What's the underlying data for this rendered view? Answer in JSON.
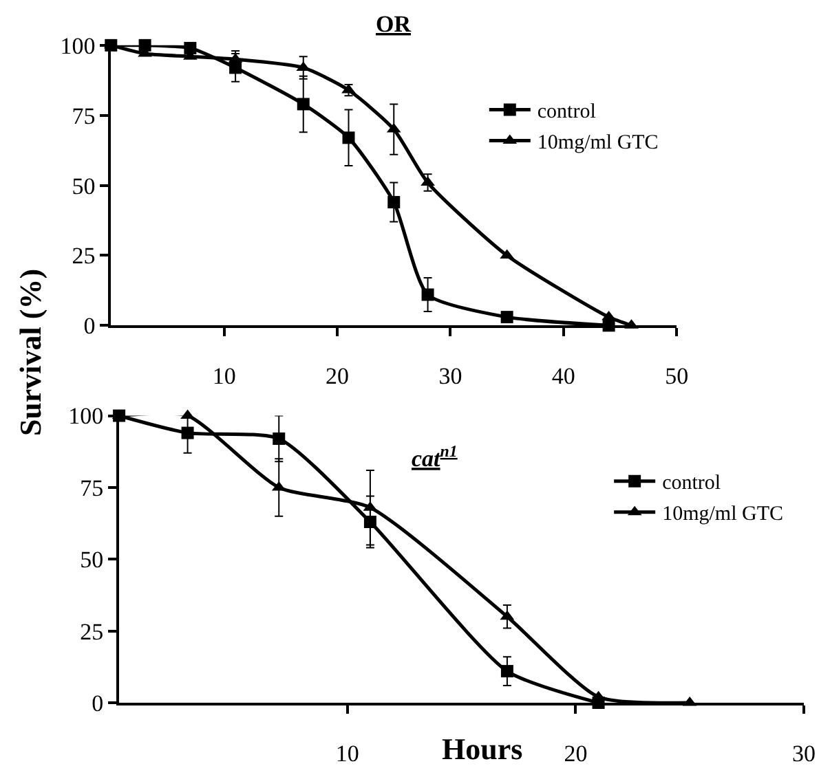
{
  "chart_data": [
    {
      "type": "line",
      "title": "OR",
      "ylabel": "Survival (%)",
      "xlim": [
        0,
        50
      ],
      "xticks": [
        10,
        20,
        30,
        40,
        50
      ],
      "ylim": [
        0,
        100
      ],
      "yticks": [
        0,
        25,
        50,
        75,
        100
      ],
      "legend": "top right",
      "line_style": "solid",
      "series": [
        {
          "name": "control",
          "color": "#000000",
          "marker": "square",
          "x": [
            0,
            3,
            7,
            11,
            17,
            21,
            25,
            28,
            35,
            44
          ],
          "values": [
            100,
            100,
            99,
            92,
            79,
            67,
            44,
            11,
            3,
            0
          ],
          "errors": [
            null,
            null,
            null,
            5,
            10,
            10,
            7,
            6,
            null,
            null
          ]
        },
        {
          "name": "10mg/ml GTC",
          "color": "#000000",
          "marker": "triangle",
          "x": [
            0,
            3,
            7,
            11,
            17,
            21,
            25,
            28,
            35,
            44,
            46
          ],
          "values": [
            100,
            97,
            96,
            95,
            92,
            84,
            70,
            51,
            25,
            3,
            0
          ],
          "errors": [
            null,
            null,
            null,
            3,
            4,
            2,
            9,
            3,
            null,
            null,
            null
          ]
        }
      ]
    },
    {
      "type": "line",
      "title": "cat$^{n1}$",
      "xlabel": "Hours",
      "xlim": [
        0,
        30
      ],
      "xticks": [
        10,
        20,
        30
      ],
      "ylim": [
        0,
        100
      ],
      "yticks": [
        0,
        25,
        50,
        75,
        100
      ],
      "legend": "top right",
      "line_style": "solid",
      "series": [
        {
          "name": "control",
          "color": "#000000",
          "marker": "square",
          "x": [
            0,
            3,
            7,
            11,
            17,
            21
          ],
          "values": [
            100,
            94,
            92,
            63,
            11,
            0
          ],
          "errors": [
            null,
            7,
            8,
            9,
            5,
            null
          ]
        },
        {
          "name": "10mg/ml GTC",
          "color": "#000000",
          "marker": "triangle",
          "x": [
            0,
            3,
            7,
            11,
            17,
            21,
            25
          ],
          "values": [
            100,
            100,
            75,
            68,
            30,
            2,
            0
          ],
          "errors": [
            null,
            null,
            10,
            13,
            4,
            null,
            null
          ]
        }
      ]
    }
  ]
}
